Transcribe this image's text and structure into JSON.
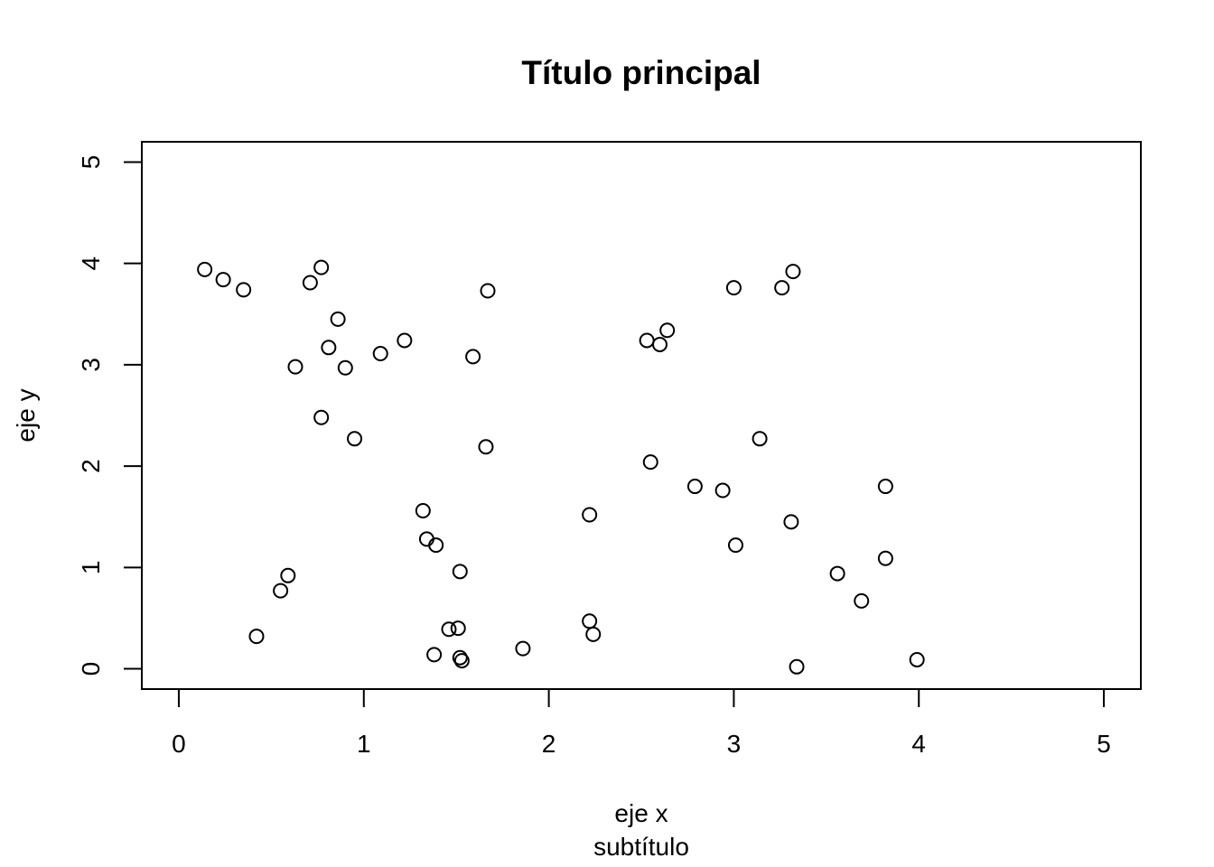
{
  "chart_data": {
    "type": "scatter",
    "title": "Título principal",
    "xlabel": "eje x",
    "subtitle": "subtítulo",
    "ylabel": "eje y",
    "xlim": [
      -0.2,
      5.2
    ],
    "ylim": [
      -0.2,
      5.2
    ],
    "xticks": [
      "0",
      "1",
      "2",
      "3",
      "4",
      "5"
    ],
    "yticks": [
      "0",
      "1",
      "2",
      "3",
      "4",
      "5"
    ],
    "grid": false,
    "marker": "open-circle",
    "points": [
      [
        0.14,
        3.94
      ],
      [
        0.24,
        3.84
      ],
      [
        0.35,
        3.74
      ],
      [
        0.71,
        3.81
      ],
      [
        0.77,
        3.96
      ],
      [
        0.86,
        3.45
      ],
      [
        0.81,
        3.17
      ],
      [
        0.63,
        2.98
      ],
      [
        0.9,
        2.97
      ],
      [
        1.09,
        3.11
      ],
      [
        1.22,
        3.24
      ],
      [
        1.59,
        3.08
      ],
      [
        1.67,
        3.73
      ],
      [
        0.77,
        2.48
      ],
      [
        0.95,
        2.27
      ],
      [
        1.66,
        2.19
      ],
      [
        1.32,
        1.56
      ],
      [
        1.34,
        1.28
      ],
      [
        1.39,
        1.22
      ],
      [
        1.52,
        0.96
      ],
      [
        0.59,
        0.92
      ],
      [
        0.55,
        0.77
      ],
      [
        0.42,
        0.32
      ],
      [
        1.46,
        0.39
      ],
      [
        1.51,
        0.4
      ],
      [
        1.38,
        0.14
      ],
      [
        1.52,
        0.11
      ],
      [
        1.53,
        0.08
      ],
      [
        1.86,
        0.2
      ],
      [
        2.22,
        0.47
      ],
      [
        2.24,
        0.34
      ],
      [
        2.22,
        1.52
      ],
      [
        2.53,
        3.24
      ],
      [
        2.6,
        3.2
      ],
      [
        2.64,
        3.34
      ],
      [
        2.55,
        2.04
      ],
      [
        2.79,
        1.8
      ],
      [
        2.94,
        1.76
      ],
      [
        3.0,
        3.76
      ],
      [
        3.26,
        3.76
      ],
      [
        3.32,
        3.92
      ],
      [
        3.14,
        2.27
      ],
      [
        3.01,
        1.22
      ],
      [
        3.31,
        1.45
      ],
      [
        3.56,
        0.94
      ],
      [
        3.69,
        0.67
      ],
      [
        3.82,
        1.8
      ],
      [
        3.82,
        1.09
      ],
      [
        3.34,
        0.02
      ],
      [
        3.99,
        0.09
      ]
    ]
  }
}
